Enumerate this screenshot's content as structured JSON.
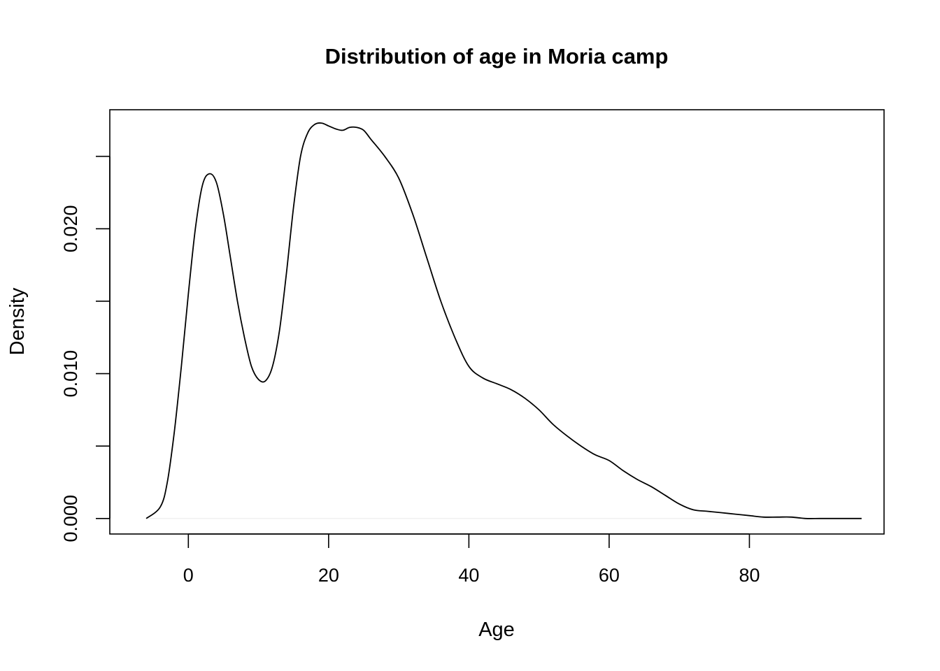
{
  "chart_data": {
    "type": "line",
    "title": "Distribution of age in Moria camp",
    "xlabel": "Age",
    "ylabel": "Density",
    "xlim": [
      -11.2,
      99.2
    ],
    "ylim": [
      -0.00107,
      0.02822
    ],
    "x_ticks": [
      0,
      20,
      40,
      60,
      80
    ],
    "x_tick_labels": [
      "0",
      "20",
      "40",
      "60",
      "80"
    ],
    "y_ticks": [
      0.0,
      0.005,
      0.01,
      0.015,
      0.02,
      0.025
    ],
    "y_tick_labels": [
      "0.000",
      "",
      "0.010",
      "",
      "0.020",
      ""
    ],
    "grid": false,
    "legend": null,
    "series": [
      {
        "x": [
          -6,
          -4,
          -3,
          -2,
          -1,
          0,
          1,
          2,
          3,
          4,
          5,
          6,
          7,
          8,
          9,
          10,
          11,
          12,
          13,
          14,
          15,
          16,
          17,
          18,
          19,
          20,
          21,
          22,
          23,
          24,
          25,
          26,
          28,
          30,
          32,
          34,
          36,
          38,
          40,
          42,
          44,
          46,
          48,
          50,
          52,
          54,
          56,
          58,
          60,
          62,
          64,
          66,
          68,
          70,
          72,
          74,
          76,
          78,
          80,
          82,
          84,
          86,
          88,
          90,
          92,
          94,
          96
        ],
        "y": [
          0.0,
          0.0008,
          0.0025,
          0.006,
          0.0105,
          0.0155,
          0.02,
          0.023,
          0.0238,
          0.0232,
          0.021,
          0.018,
          0.015,
          0.0125,
          0.0105,
          0.0096,
          0.0095,
          0.0105,
          0.013,
          0.017,
          0.0215,
          0.025,
          0.0266,
          0.0272,
          0.0273,
          0.0271,
          0.0269,
          0.0268,
          0.027,
          0.027,
          0.0268,
          0.0262,
          0.025,
          0.0235,
          0.021,
          0.018,
          0.015,
          0.0125,
          0.0105,
          0.0097,
          0.0093,
          0.0089,
          0.0083,
          0.0075,
          0.0065,
          0.0057,
          0.005,
          0.0044,
          0.004,
          0.0033,
          0.0027,
          0.0022,
          0.0016,
          0.001,
          0.0006,
          0.0005,
          0.0004,
          0.0003,
          0.0002,
          0.0001,
          0.0001,
          0.0001,
          0.0,
          0.0,
          0.0,
          0.0,
          0.0
        ]
      }
    ]
  }
}
